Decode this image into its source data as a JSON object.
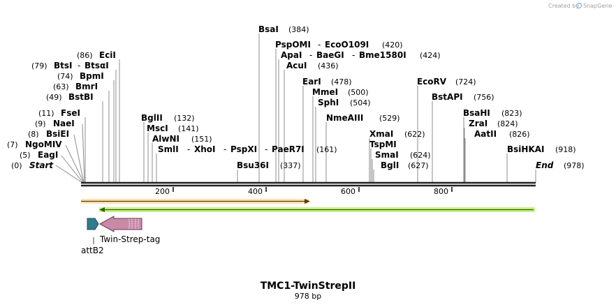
{
  "credit": {
    "prefix": "Created by",
    "brand": "SnapGene"
  },
  "title": "TMC1-TwinStrepII",
  "length_label": "978 bp",
  "colors": {
    "backbone": "#222222",
    "orange_arrow": "#f5a623",
    "green_arrow": "#7ed321",
    "attB2": "#2e7d8f",
    "twin_strep": "#c98aa8"
  },
  "sites": [
    {
      "name": "BsaI",
      "pos": "(384)"
    },
    {
      "name": "PspOMI",
      "pos": ""
    },
    {
      "name": "EcoO109I",
      "pos": "(420)"
    },
    {
      "name": "ApaI",
      "pos": ""
    },
    {
      "name": "BaeGI",
      "pos": ""
    },
    {
      "name": "Bme1580I",
      "pos": "(424)"
    },
    {
      "name": "AcuI",
      "pos": "(436)"
    },
    {
      "name": "EarI",
      "pos": "(478)"
    },
    {
      "name": "MmeI",
      "pos": "(500)"
    },
    {
      "name": "SphI",
      "pos": "(504)"
    },
    {
      "name": "NmeAIII",
      "pos": "(529)"
    },
    {
      "name": "XmaI",
      "pos": "(622)"
    },
    {
      "name": "TspMI",
      "pos": ""
    },
    {
      "name": "SmaI",
      "pos": "(624)"
    },
    {
      "name": "BglI",
      "pos": "(627)"
    },
    {
      "name": "EcoRV",
      "pos": "(724)"
    },
    {
      "name": "BstAPI",
      "pos": "(756)"
    },
    {
      "name": "BsaHI",
      "pos": "(823)"
    },
    {
      "name": "ZraI",
      "pos": "(824)"
    },
    {
      "name": "AatII",
      "pos": "(826)"
    },
    {
      "name": "BsiHKAI",
      "pos": "(918)"
    },
    {
      "name": "End",
      "pos": "(978)"
    },
    {
      "name": "EciI",
      "pos": "(86)"
    },
    {
      "name": "BtsI",
      "pos": "(79)"
    },
    {
      "name": "BtsαI",
      "pos": ""
    },
    {
      "name": "BpmI",
      "pos": "(74)"
    },
    {
      "name": "BmrI",
      "pos": "(63)"
    },
    {
      "name": "BstBI",
      "pos": "(49)"
    },
    {
      "name": "FseI",
      "pos": "(11)"
    },
    {
      "name": "NaeI",
      "pos": "(9)"
    },
    {
      "name": "BsiEI",
      "pos": "(8)"
    },
    {
      "name": "NgoMIV",
      "pos": "(7)"
    },
    {
      "name": "EagI",
      "pos": "(5)"
    },
    {
      "name": "Start",
      "pos": "(0)"
    },
    {
      "name": "BglII",
      "pos": "(132)"
    },
    {
      "name": "MscI",
      "pos": "(141)"
    },
    {
      "name": "AlwNI",
      "pos": "(151)"
    },
    {
      "name": "SmlI",
      "pos": ""
    },
    {
      "name": "XhoI",
      "pos": ""
    },
    {
      "name": "PspXI",
      "pos": ""
    },
    {
      "name": "PaeR7I",
      "pos": "(161)"
    },
    {
      "name": "Bsu36I",
      "pos": "(337)"
    }
  ],
  "ruler": {
    "ticks": [
      "200",
      "400",
      "600",
      "800"
    ]
  },
  "features": {
    "attB2": "attB2",
    "twin_strep": "Twin-Strep-tag"
  }
}
